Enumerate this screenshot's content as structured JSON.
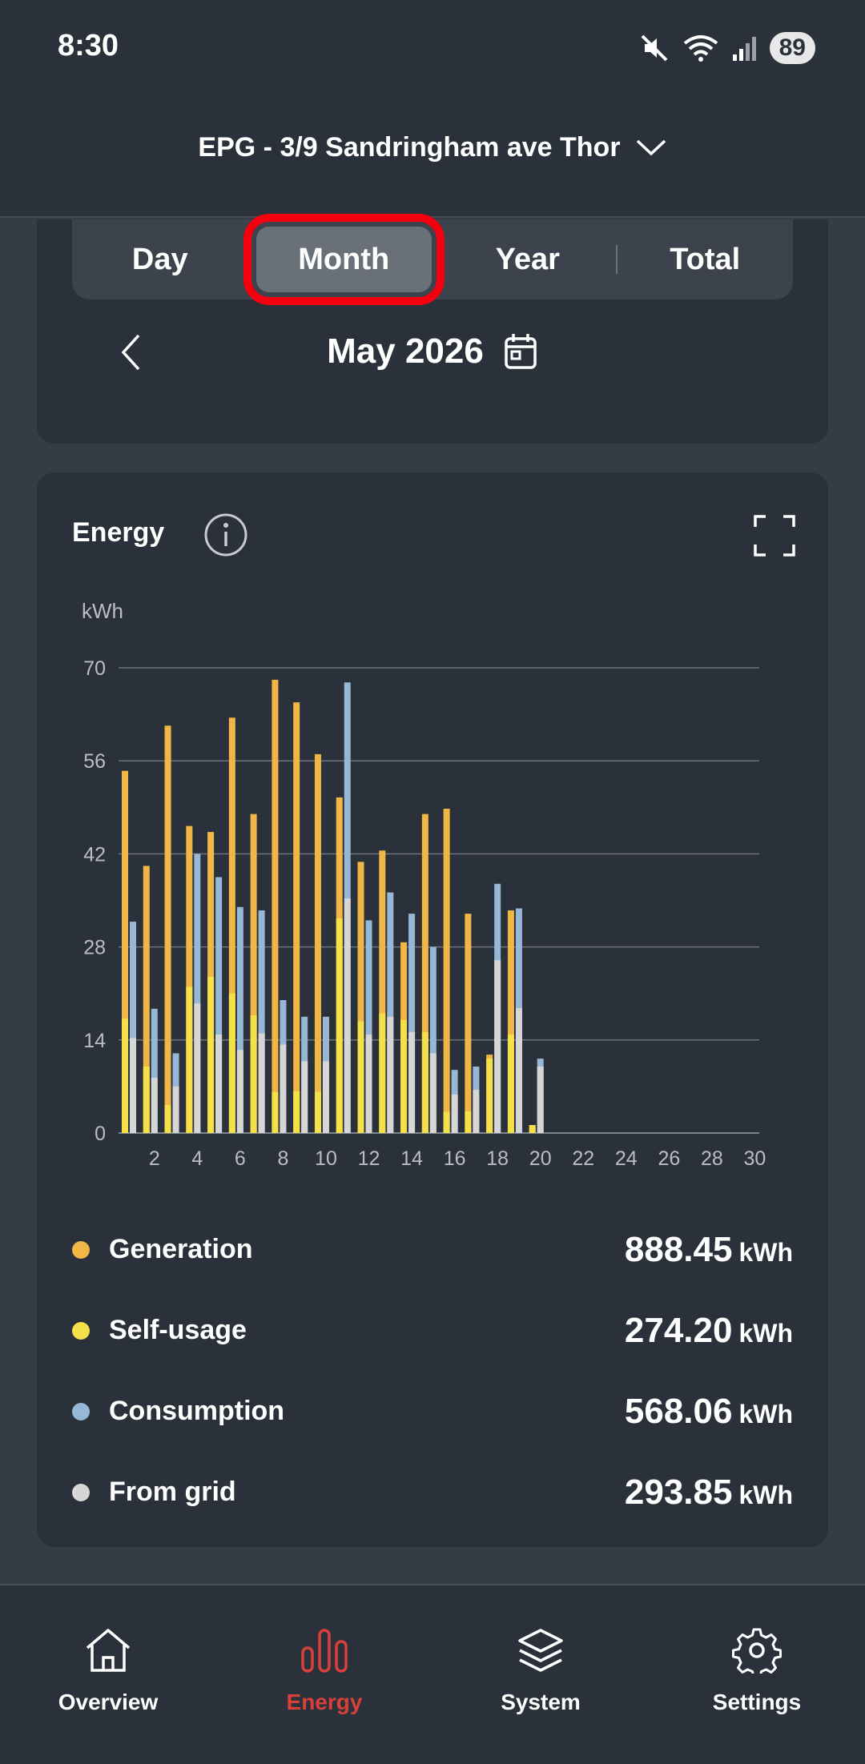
{
  "status_bar": {
    "time": "8:30",
    "battery": "89"
  },
  "header": {
    "site_name": "EPG - 3/9 Sandringham ave Thor"
  },
  "period_tabs": [
    {
      "label": "Day"
    },
    {
      "label": "Month"
    },
    {
      "label": "Year"
    },
    {
      "label": "Total"
    }
  ],
  "active_tab": "Month",
  "month_nav": {
    "label": "May 2026"
  },
  "energy_card": {
    "title": "Energy",
    "unit_label": "kWh",
    "legend": [
      {
        "name": "Generation",
        "value": "888.45",
        "unit": "kWh",
        "color": "#f0b646"
      },
      {
        "name": "Self-usage",
        "value": "274.20",
        "unit": "kWh",
        "color": "#f6e04a"
      },
      {
        "name": "Consumption",
        "value": "568.06",
        "unit": "kWh",
        "color": "#96b8d6"
      },
      {
        "name": "From grid",
        "value": "293.85",
        "unit": "kWh",
        "color": "#d6d6d6"
      }
    ]
  },
  "chart_data": {
    "type": "bar",
    "ylabel": "kWh",
    "ylim": [
      0,
      70
    ],
    "yticks": [
      "0",
      "14",
      "28",
      "42",
      "56",
      "70"
    ],
    "xtick_labels": [
      "2",
      "4",
      "6",
      "8",
      "10",
      "12",
      "14",
      "16",
      "18",
      "20",
      "22",
      "24",
      "26",
      "28",
      "30"
    ],
    "days": [
      1,
      2,
      3,
      4,
      5,
      6,
      7,
      8,
      9,
      10,
      11,
      12,
      13,
      14,
      15,
      16,
      17,
      18,
      19,
      20,
      21,
      22,
      23,
      24,
      25,
      26,
      27,
      28,
      29,
      30,
      31
    ],
    "series": [
      {
        "name": "Generation",
        "values": [
          54.5,
          40.2,
          61.3,
          46.2,
          45.3,
          62.5,
          48.0,
          68.2,
          64.8,
          57.0,
          50.5,
          40.8,
          42.5,
          28.7,
          48.0,
          48.8,
          33.0,
          11.8,
          33.5,
          1.2,
          0,
          0,
          0,
          0,
          0,
          0,
          0,
          0,
          0,
          0,
          0
        ]
      },
      {
        "name": "Self-usage",
        "values": [
          17.2,
          10.0,
          4.2,
          22.0,
          23.5,
          21.0,
          17.7,
          6.2,
          6.3,
          6.2,
          32.3,
          16.8,
          18.0,
          17.0,
          15.2,
          3.2,
          3.3,
          11.2,
          14.8,
          1.2,
          0,
          0,
          0,
          0,
          0,
          0,
          0,
          0,
          0,
          0,
          0
        ]
      },
      {
        "name": "Consumption",
        "values": [
          31.8,
          18.7,
          12.0,
          42.0,
          38.5,
          34.0,
          33.5,
          20.0,
          17.5,
          17.5,
          67.8,
          32.0,
          36.2,
          33.0,
          28.0,
          9.5,
          10.0,
          37.5,
          33.8,
          11.2,
          0,
          0,
          0,
          0,
          0,
          0,
          0,
          0,
          0,
          0,
          0
        ]
      },
      {
        "name": "From grid",
        "values": [
          14.3,
          8.3,
          7.0,
          19.5,
          14.8,
          12.5,
          15.0,
          13.3,
          10.8,
          10.8,
          35.3,
          14.8,
          17.5,
          15.2,
          12.0,
          5.8,
          6.5,
          26.0,
          18.8,
          10.0,
          0,
          0,
          0,
          0,
          0,
          0,
          0,
          0,
          0,
          0,
          0
        ]
      }
    ]
  },
  "bottom_nav": [
    {
      "label": "Overview",
      "icon": "home-icon",
      "active": false
    },
    {
      "label": "Energy",
      "icon": "bar-chart-icon",
      "active": true
    },
    {
      "label": "System",
      "icon": "layers-icon",
      "active": false
    },
    {
      "label": "Settings",
      "icon": "gear-icon",
      "active": false
    }
  ],
  "colors": {
    "active_nav": "#d9403a",
    "highlight_outline": "#f4000f",
    "background": "#363c45",
    "card": "#2b313a"
  }
}
